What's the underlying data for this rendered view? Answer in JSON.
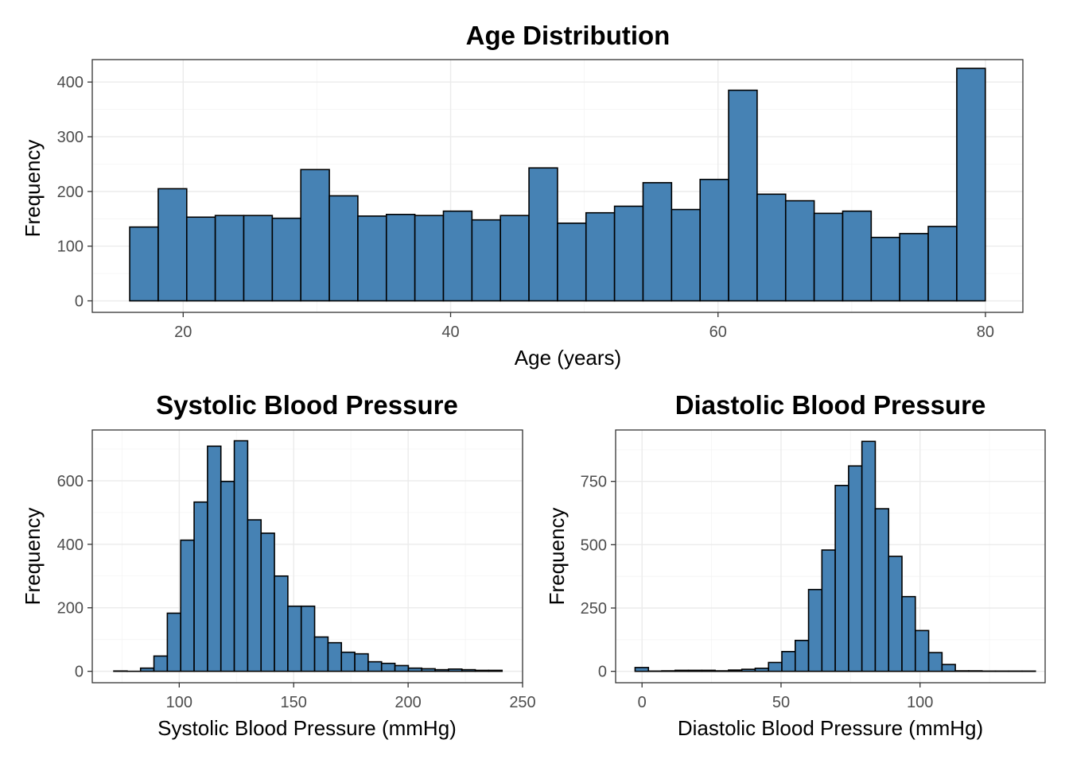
{
  "chart_data": [
    {
      "type": "bar",
      "title": "Age Distribution",
      "xlabel": "Age (years)",
      "ylabel": "Frequency",
      "xlim": [
        13.2,
        82.8
      ],
      "ylim": [
        -21,
        441
      ],
      "x_ticks": [
        20,
        40,
        60,
        80
      ],
      "y_ticks": [
        0,
        100,
        200,
        300,
        400
      ],
      "x_ticks_labels": [
        "20",
        "40",
        "60",
        "80"
      ],
      "y_ticks_labels": [
        "0",
        "100",
        "200",
        "300",
        "400"
      ],
      "grid": true,
      "bar_color": "#4682B4",
      "bar_outline": "#000000",
      "bin_start": 16,
      "bin_width": 2.133,
      "values": [
        135,
        205,
        153,
        156,
        156,
        151,
        240,
        192,
        155,
        158,
        156,
        164,
        148,
        156,
        243,
        142,
        161,
        173,
        216,
        167,
        222,
        385,
        195,
        183,
        160,
        164,
        116,
        123,
        136,
        425
      ]
    },
    {
      "type": "bar",
      "title": "Systolic Blood Pressure",
      "xlabel": "Systolic Blood Pressure (mmHg)",
      "ylabel": "Frequency",
      "xlim": [
        62,
        250
      ],
      "ylim": [
        -36,
        760
      ],
      "x_ticks": [
        100,
        150,
        200,
        250
      ],
      "y_ticks": [
        0,
        200,
        400,
        600
      ],
      "x_ticks_labels": [
        "100",
        "150",
        "200",
        "250"
      ],
      "y_ticks_labels": [
        "0",
        "200",
        "400",
        "600"
      ],
      "grid": true,
      "bar_color": "#4682B4",
      "bar_outline": "#000000",
      "bin_start": 71.4,
      "bin_width": 5.85,
      "values": [
        1,
        0,
        10,
        48,
        183,
        413,
        533,
        709,
        598,
        726,
        477,
        435,
        300,
        205,
        205,
        108,
        90,
        60,
        55,
        30,
        25,
        18,
        10,
        8,
        5,
        7,
        5,
        3,
        3
      ]
    },
    {
      "type": "bar",
      "title": "Diastolic Blood Pressure",
      "xlabel": "Diastolic Blood Pressure (mmHg)",
      "ylabel": "Frequency",
      "xlim": [
        -9.5,
        145
      ],
      "ylim": [
        -45,
        953
      ],
      "x_ticks": [
        0,
        50,
        100
      ],
      "y_ticks": [
        0,
        250,
        500,
        750
      ],
      "x_ticks_labels": [
        "0",
        "50",
        "100"
      ],
      "y_ticks_labels": [
        "0",
        "250",
        "500",
        "750"
      ],
      "grid": true,
      "bar_color": "#4682B4",
      "bar_outline": "#000000",
      "bin_start": -2.5,
      "bin_width": 4.8,
      "values": [
        15,
        1,
        2,
        4,
        4,
        4,
        2,
        5,
        8,
        12,
        35,
        78,
        122,
        323,
        479,
        734,
        811,
        908,
        642,
        454,
        295,
        161,
        74,
        27,
        2,
        2,
        1,
        1,
        1,
        1
      ]
    }
  ]
}
